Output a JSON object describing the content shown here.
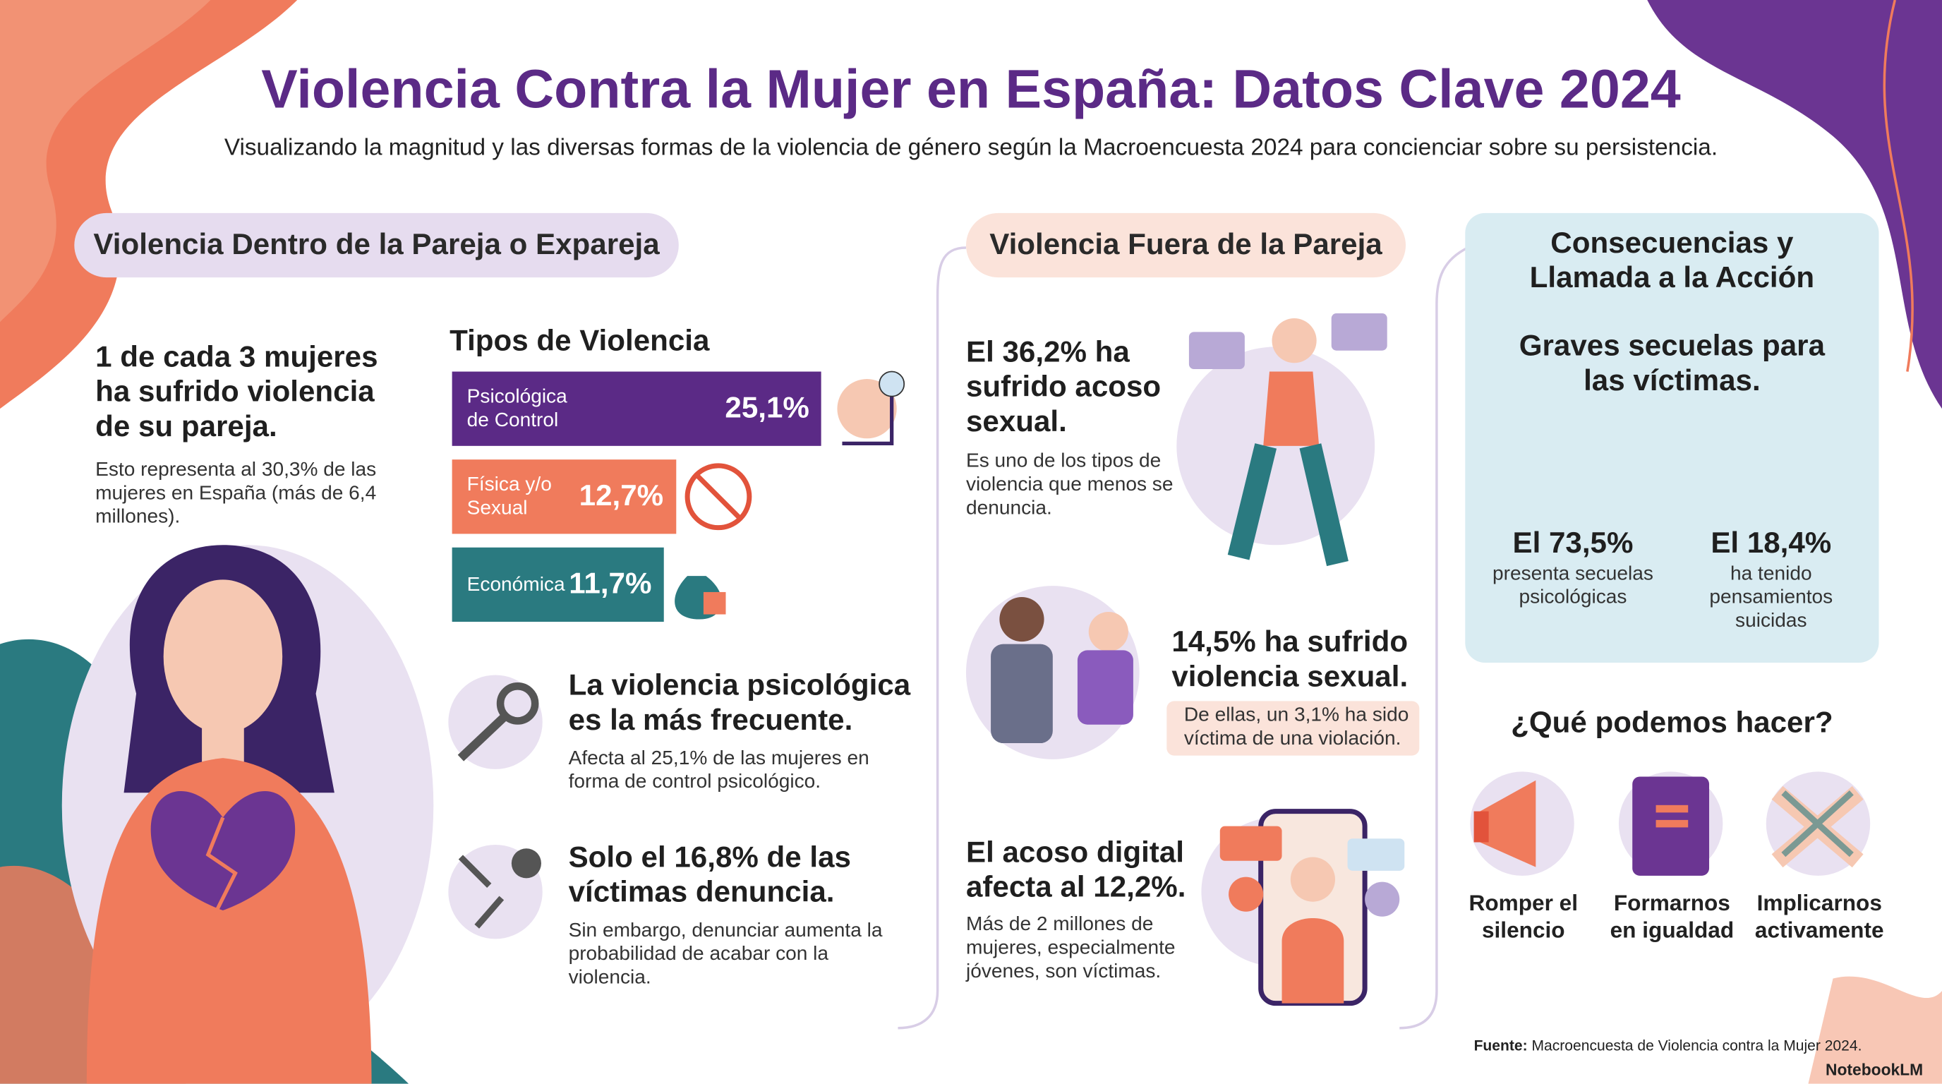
{
  "header": {
    "title": "Violencia Contra la Mujer en España: Datos Clave 2024",
    "subtitle": "Visualizando la magnitud y las diversas formas de la violencia de género según la Macroencuesta 2024 para concienciar sobre su persistencia."
  },
  "left": {
    "heading": "Violencia Dentro de la Pareja o Expareja",
    "stat": {
      "title": "1 de cada 3 mujeres ha sufrido violencia de su pareja.",
      "text": "Esto representa al 30,3% de las mujeres en España (más de 6,4 millones)."
    },
    "types": {
      "title": "Tipos de Violencia",
      "items": [
        {
          "label": "Psicológica de Control",
          "value": 25.1,
          "value_label": "25,1%",
          "color": "#5b2a86"
        },
        {
          "label": "Física y/o Sexual",
          "value": 12.7,
          "value_label": "12,7%",
          "color": "#f07b5c"
        },
        {
          "label": "Económica",
          "value": 11.7,
          "value_label": "11,7%",
          "color": "#2a7a80"
        }
      ]
    },
    "facts": [
      {
        "title": "La violencia psicológica es la más frecuente.",
        "text": "Afecta al 25,1% de las mujeres en forma de control psicológico."
      },
      {
        "title": "Solo el 16,8% de las víctimas denuncia.",
        "text": "Sin embargo, denunciar aumenta la probabilidad de acabar con la violencia."
      }
    ]
  },
  "middle": {
    "heading": "Violencia Fuera de la Pareja",
    "facts": [
      {
        "title": "El 36,2% ha sufrido acoso sexual.",
        "text": "Es uno de los tipos de violencia que menos se denuncia."
      },
      {
        "title": "14,5% ha sufrido violencia sexual.",
        "note": "De ellas, un 3,1% ha sido víctima de una violación."
      },
      {
        "title": "El acoso digital afecta al 12,2%.",
        "text": "Más de 2 millones de mujeres, especialmente jóvenes, son víctimas."
      }
    ]
  },
  "right": {
    "heading": "Consecuencias y Llamada a la Acción",
    "subheading": "Graves secuelas para las víctimas.",
    "stats": [
      {
        "value": "El 73,5%",
        "text": "presenta secuelas psicológicas"
      },
      {
        "value": "El 18,4%",
        "text": "ha tenido pensamientos suicidas"
      }
    ],
    "action_title": "¿Qué podemos hacer?",
    "actions": [
      "Romper el silencio",
      "Formarnos en igualdad",
      "Implicarnos activamente"
    ]
  },
  "footer": {
    "source_label": "Fuente:",
    "source": "Macroencuesta de Violencia contra la Mujer 2024.",
    "brand": "NotebookLM"
  }
}
